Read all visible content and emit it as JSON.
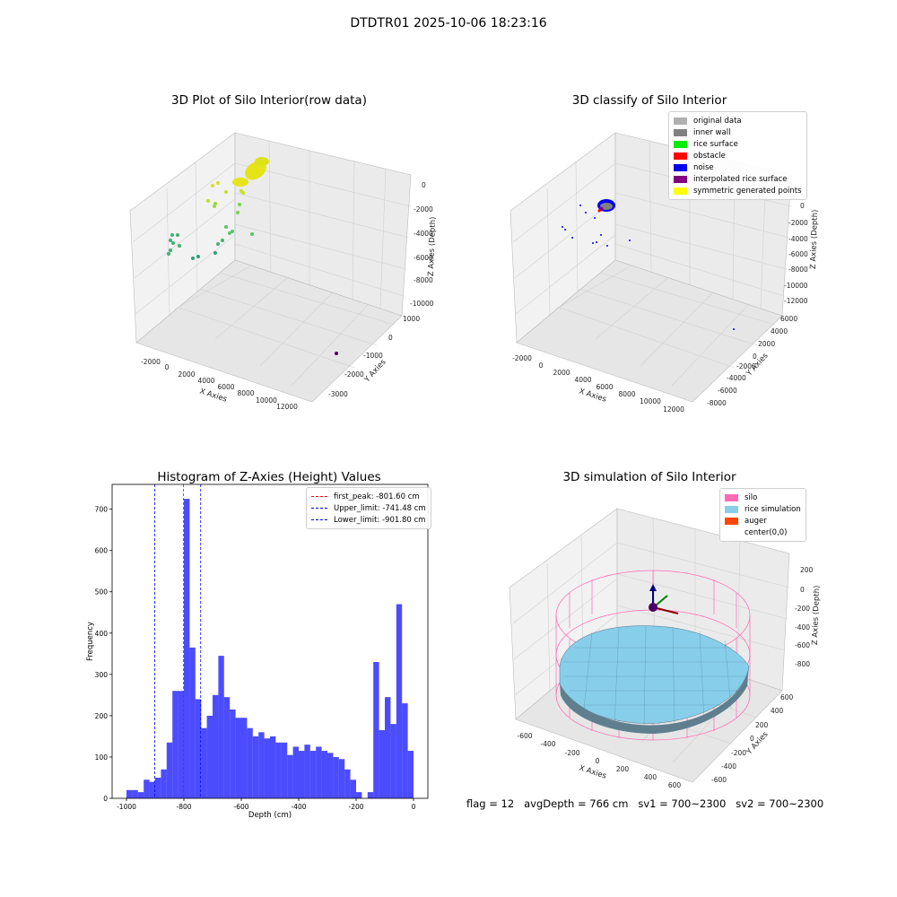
{
  "figure": {
    "title": "DTDTR01 2025-10-06 18:23:16"
  },
  "footer": {
    "text": "flag = 12   avgDepth = 766 cm   sv1 = 700~2300   sv2 = 700~2300"
  },
  "plots": {
    "raw": {
      "title": "3D Plot of Silo Interior(row data)",
      "x_label": "X Axies",
      "y_label": "Y Axies",
      "z_label": "Z Axies (Depth)",
      "x_ticks": [
        "-2000",
        "0",
        "2000",
        "4000",
        "6000",
        "8000",
        "10000",
        "12000"
      ],
      "y_ticks": [
        "1000",
        "0",
        "-1000",
        "-2000",
        "-3000"
      ],
      "z_ticks": [
        "0",
        "-2000",
        "-4000",
        "-6000",
        "-8000",
        "-10000"
      ]
    },
    "classify": {
      "title": "3D classify of Silo Interior",
      "x_label": "X Axies",
      "y_label": "Y Axies",
      "z_label": "Z Axies (Depth)",
      "x_ticks": [
        "-2000",
        "0",
        "2000",
        "4000",
        "6000",
        "8000",
        "10000",
        "12000"
      ],
      "y_ticks": [
        "6000",
        "4000",
        "2000",
        "0",
        "-2000",
        "-4000",
        "-6000",
        "-8000"
      ],
      "z_ticks": [
        "0",
        "-2000",
        "-4000",
        "-6000",
        "-8000",
        "-10000",
        "-12000"
      ],
      "legend": [
        {
          "label": "original data",
          "color": "#b0b0b0"
        },
        {
          "label": "inner wall",
          "color": "#808080"
        },
        {
          "label": "rice surface",
          "color": "#00ee00"
        },
        {
          "label": "obstacle",
          "color": "#ff0000"
        },
        {
          "label": "noise",
          "color": "#0000ee"
        },
        {
          "label": "interpolated rice surface",
          "color": "#800080"
        },
        {
          "label": "symmetric generated points",
          "color": "#ffff00"
        }
      ]
    },
    "simulation": {
      "title": "3D simulation of Silo Interior",
      "x_label": "X Axies",
      "y_label": "Y Axies",
      "z_label": "Z Axies (Depth)",
      "x_ticks": [
        "-600",
        "-400",
        "-200",
        "0",
        "200",
        "400",
        "600"
      ],
      "y_ticks": [
        "600",
        "400",
        "200",
        "0",
        "-200",
        "-400",
        "-600"
      ],
      "z_ticks": [
        "200",
        "0",
        "-200",
        "-400",
        "-600",
        "-800"
      ],
      "legend": [
        {
          "label": "silo",
          "color": "#ff69b4"
        },
        {
          "label": "rice simulation",
          "color": "#87ceeb"
        },
        {
          "label": "auger",
          "color": "#ff4500"
        },
        {
          "label": "center(0,0)",
          "color": "#ffffff"
        }
      ]
    }
  },
  "chart_data": [
    {
      "type": "bar",
      "title": "Histogram of Z-Axies (Height) Values",
      "xlabel": "Depth (cm)",
      "ylabel": "Frequency",
      "xlim": [
        -1050,
        50
      ],
      "ylim": [
        0,
        760
      ],
      "x_ticks": [
        -1000,
        -800,
        -600,
        -400,
        -200,
        0
      ],
      "y_ticks": [
        0,
        100,
        200,
        300,
        400,
        500,
        600,
        700
      ],
      "bin_width": 20,
      "bin_starts": [
        -1000,
        -980,
        -960,
        -940,
        -920,
        -900,
        -880,
        -860,
        -840,
        -820,
        -800,
        -780,
        -760,
        -740,
        -720,
        -700,
        -680,
        -660,
        -640,
        -620,
        -600,
        -580,
        -560,
        -540,
        -520,
        -500,
        -480,
        -460,
        -440,
        -420,
        -400,
        -380,
        -360,
        -340,
        -320,
        -300,
        -280,
        -260,
        -240,
        -220,
        -200,
        -180,
        -160,
        -140,
        -120,
        -100,
        -80,
        -60,
        -40,
        -20
      ],
      "values": [
        20,
        20,
        15,
        45,
        40,
        50,
        70,
        135,
        260,
        260,
        725,
        365,
        240,
        170,
        200,
        250,
        345,
        245,
        215,
        195,
        195,
        170,
        150,
        160,
        145,
        150,
        135,
        135,
        105,
        125,
        115,
        130,
        115,
        125,
        115,
        110,
        100,
        95,
        70,
        45,
        15,
        0,
        15,
        330,
        165,
        245,
        180,
        470,
        230,
        115
      ],
      "color": "#0000ff",
      "grid": false,
      "legend_position": "top-right",
      "vlines": [
        {
          "x": -801.6,
          "label": "first_peak: -801.60 cm",
          "color": "#ff0000"
        },
        {
          "x": -741.48,
          "label": "Upper_limit: -741.48 cm",
          "color": "#0000ff"
        },
        {
          "x": -901.8,
          "label": "Lower_limit: -901.80 cm",
          "color": "#0000ff"
        }
      ]
    }
  ]
}
